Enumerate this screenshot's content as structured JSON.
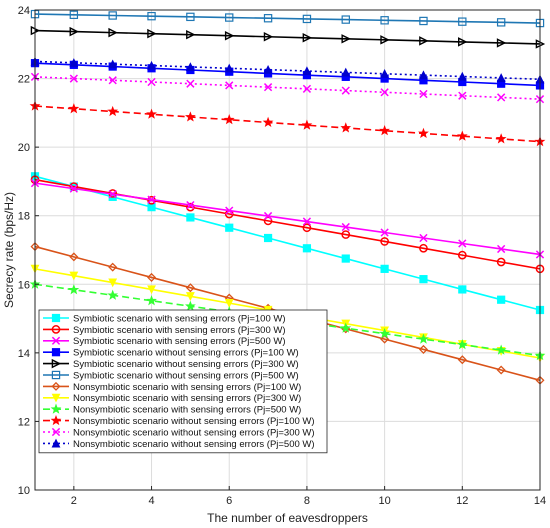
{
  "chart_data": {
    "type": "line",
    "xlabel": "The number of eavesdroppers",
    "ylabel": "Secrecy rate (bps/Hz)",
    "xlim": [
      1,
      14
    ],
    "ylim": [
      10,
      24
    ],
    "xticks": [
      2,
      4,
      6,
      8,
      10,
      12,
      14
    ],
    "yticks": [
      10,
      12,
      14,
      16,
      18,
      20,
      22,
      24
    ],
    "grid": true,
    "legend_position": "bottom-left",
    "x": [
      1,
      2,
      3,
      4,
      5,
      6,
      7,
      8,
      9,
      10,
      11,
      12,
      13,
      14
    ],
    "series": [
      {
        "name": "Symbiotic scenario with sensing errors (Pj=100 W)",
        "color": "#00ffff",
        "dash": "solid",
        "marker": "square-filled",
        "values": [
          19.15,
          18.85,
          18.55,
          18.25,
          17.95,
          17.65,
          17.35,
          17.05,
          16.75,
          16.45,
          16.15,
          15.85,
          15.55,
          15.25
        ]
      },
      {
        "name": "Symbiotic scenario with sensing errors (Pj=300 W)",
        "color": "#ff0000",
        "dash": "solid",
        "marker": "circle",
        "values": [
          19.05,
          18.85,
          18.65,
          18.45,
          18.25,
          18.05,
          17.85,
          17.65,
          17.45,
          17.25,
          17.05,
          16.85,
          16.65,
          16.45
        ]
      },
      {
        "name": "Symbiotic scenario with sensing errors (Pj=500 W)",
        "color": "#ff00ff",
        "dash": "solid",
        "marker": "x",
        "values": [
          18.95,
          18.79,
          18.63,
          18.47,
          18.31,
          18.15,
          17.99,
          17.83,
          17.67,
          17.51,
          17.35,
          17.19,
          17.03,
          16.87
        ]
      },
      {
        "name": "Symbiotic scenario without sensing errors (Pj=100 W)",
        "color": "#0000ff",
        "dash": "solid",
        "marker": "square-filled",
        "values": [
          22.45,
          22.4,
          22.35,
          22.3,
          22.25,
          22.2,
          22.15,
          22.1,
          22.05,
          22.0,
          21.95,
          21.9,
          21.85,
          21.8
        ]
      },
      {
        "name": "Symbiotic scenario without sensing errors (Pj=300 W)",
        "color": "#000000",
        "dash": "solid",
        "marker": "triangle-right",
        "values": [
          23.4,
          23.37,
          23.34,
          23.31,
          23.28,
          23.25,
          23.22,
          23.19,
          23.16,
          23.13,
          23.1,
          23.07,
          23.04,
          23.01
        ]
      },
      {
        "name": "Symbiotic scenario without sensing errors (Pj=500 W)",
        "color": "#1f77b4",
        "dash": "solid",
        "marker": "square",
        "values": [
          23.88,
          23.86,
          23.84,
          23.82,
          23.8,
          23.78,
          23.76,
          23.74,
          23.72,
          23.7,
          23.68,
          23.66,
          23.64,
          23.62
        ]
      },
      {
        "name": "Nonsymbiotic scenario with sensing errors (Pj=100 W)",
        "color": "#d95319",
        "dash": "solid",
        "marker": "diamond",
        "values": [
          17.1,
          16.8,
          16.5,
          16.2,
          15.9,
          15.6,
          15.3,
          15.0,
          14.7,
          14.4,
          14.1,
          13.8,
          13.5,
          13.2
        ]
      },
      {
        "name": "Nonsymbiotic scenario with sensing errors (Pj=300 W)",
        "color": "#ffff00",
        "dash": "solid",
        "marker": "triangle-down",
        "values": [
          16.45,
          16.25,
          16.05,
          15.85,
          15.65,
          15.45,
          15.25,
          15.05,
          14.85,
          14.65,
          14.45,
          14.25,
          14.05,
          13.85
        ]
      },
      {
        "name": "Nonsymbiotic scenario with sensing errors (Pj=500 W)",
        "color": "#33ff33",
        "dash": "dashed",
        "marker": "star",
        "values": [
          16.0,
          15.84,
          15.68,
          15.52,
          15.36,
          15.2,
          15.04,
          14.88,
          14.72,
          14.56,
          14.4,
          14.24,
          14.08,
          13.92
        ]
      },
      {
        "name": "Nonsymbiotic scenario without sensing errors (Pj=100 W)",
        "color": "#ff0000",
        "dash": "dashed",
        "marker": "star",
        "values": [
          21.2,
          21.12,
          21.04,
          20.96,
          20.88,
          20.8,
          20.72,
          20.64,
          20.56,
          20.48,
          20.4,
          20.32,
          20.24,
          20.16
        ]
      },
      {
        "name": "Nonsymbiotic scenario without sensing errors (Pj=300 W)",
        "color": "#ff00ff",
        "dash": "dotted",
        "marker": "x",
        "values": [
          22.05,
          22.0,
          21.95,
          21.9,
          21.85,
          21.8,
          21.75,
          21.7,
          21.65,
          21.6,
          21.55,
          21.5,
          21.45,
          21.4
        ]
      },
      {
        "name": "Nonsymbiotic scenario without sensing errors (Pj=500 W)",
        "color": "#0000cc",
        "dash": "dotted",
        "marker": "triangle-up",
        "values": [
          22.5,
          22.46,
          22.42,
          22.38,
          22.34,
          22.3,
          22.26,
          22.22,
          22.18,
          22.14,
          22.1,
          22.06,
          22.02,
          21.98
        ]
      }
    ]
  }
}
